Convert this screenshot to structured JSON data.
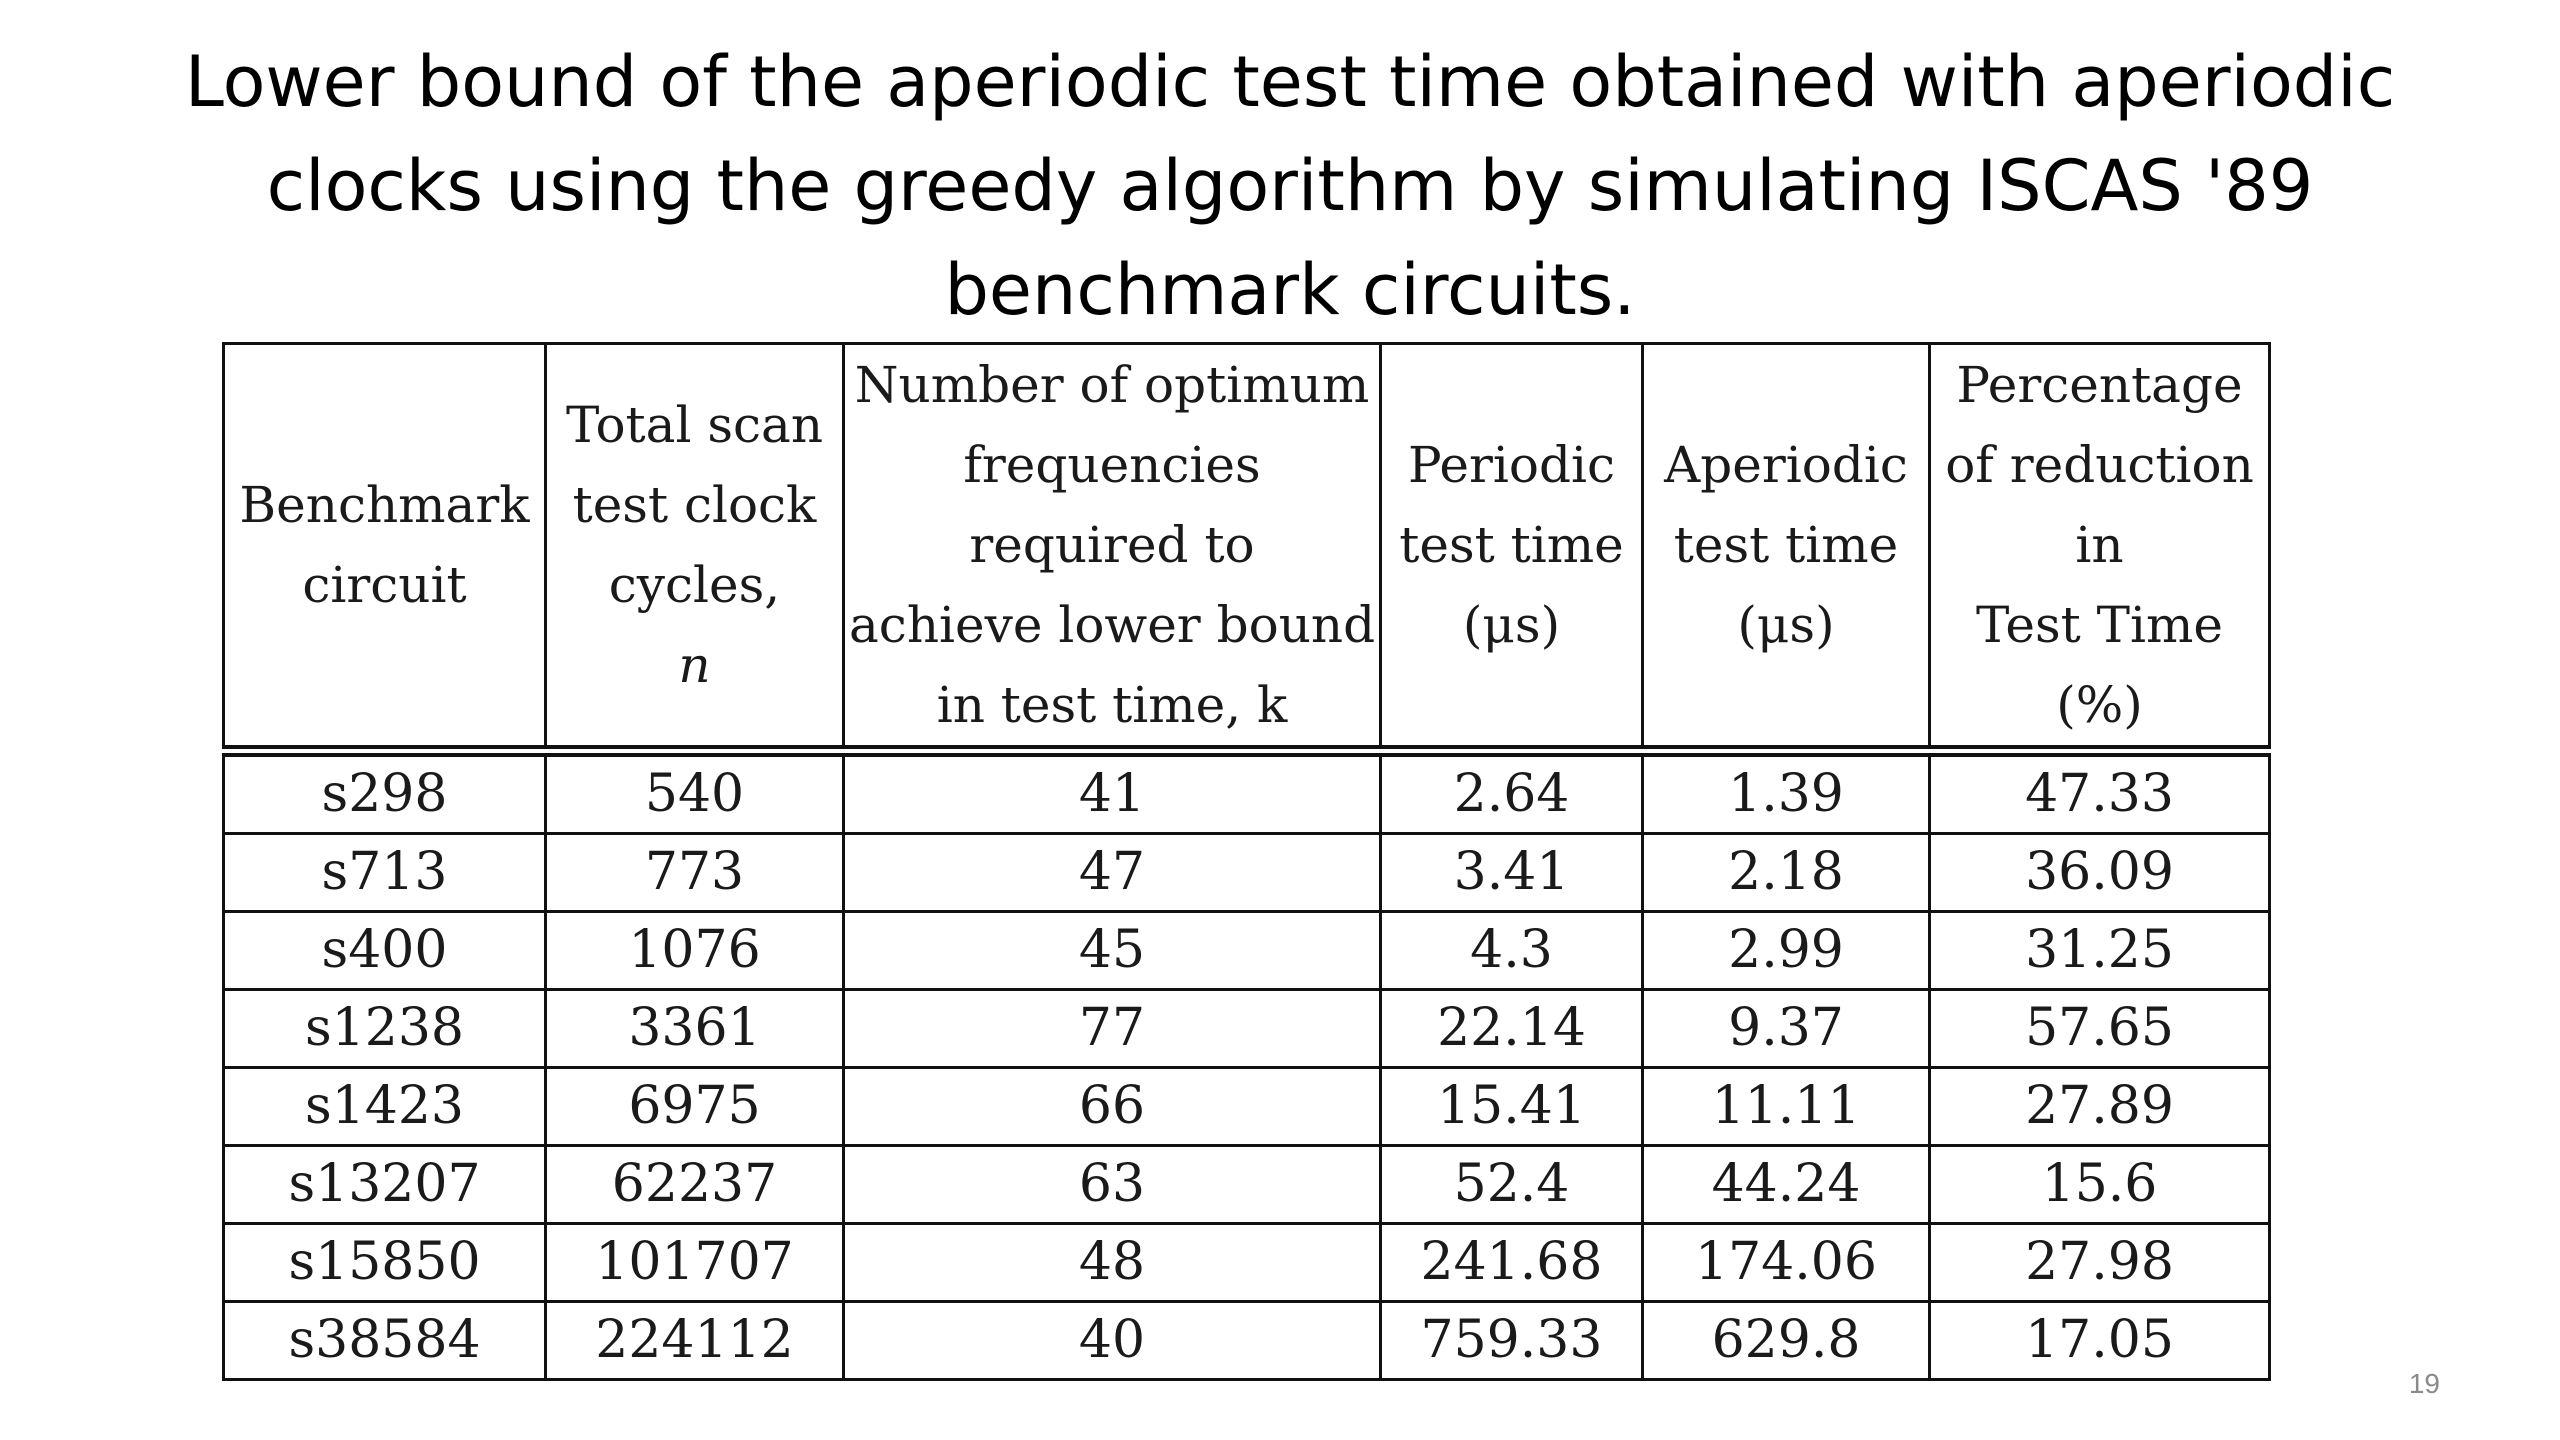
{
  "slide": {
    "title": "Lower bound of the aperiodic test time obtained with aperiodic clocks using the greedy algorithm by simulating ISCAS '89 benchmark circuits.",
    "number": "19"
  },
  "table": {
    "headers": [
      {
        "lines": [
          "Benchmark",
          "circuit"
        ]
      },
      {
        "lines": [
          "Total scan",
          "test clock",
          "cycles,",
          "n"
        ]
      },
      {
        "lines": [
          "Number of optimum",
          "frequencies",
          "required to",
          "achieve lower bound",
          "in test time, k"
        ]
      },
      {
        "lines": [
          "Periodic",
          "test time",
          "(μs)"
        ]
      },
      {
        "lines": [
          "Aperiodic",
          "test time",
          "(μs)"
        ]
      },
      {
        "lines": [
          "Percentage",
          "of reduction",
          "in",
          "Test Time",
          "(%)"
        ]
      }
    ],
    "rows": [
      [
        "s298",
        "540",
        "41",
        "2.64",
        "1.39",
        "47.33"
      ],
      [
        "s713",
        "773",
        "47",
        "3.41",
        "2.18",
        "36.09"
      ],
      [
        "s400",
        "1076",
        "45",
        "4.3",
        "2.99",
        "31.25"
      ],
      [
        "s1238",
        "3361",
        "77",
        "22.14",
        "9.37",
        "57.65"
      ],
      [
        "s1423",
        "6975",
        "66",
        "15.41",
        "11.11",
        "27.89"
      ],
      [
        "s13207",
        "62237",
        "63",
        "52.4",
        "44.24",
        "15.6"
      ],
      [
        "s15850",
        "101707",
        "48",
        "241.68",
        "174.06",
        "27.98"
      ],
      [
        "s38584",
        "224112",
        "40",
        "759.33",
        "629.8",
        "17.05"
      ]
    ]
  }
}
